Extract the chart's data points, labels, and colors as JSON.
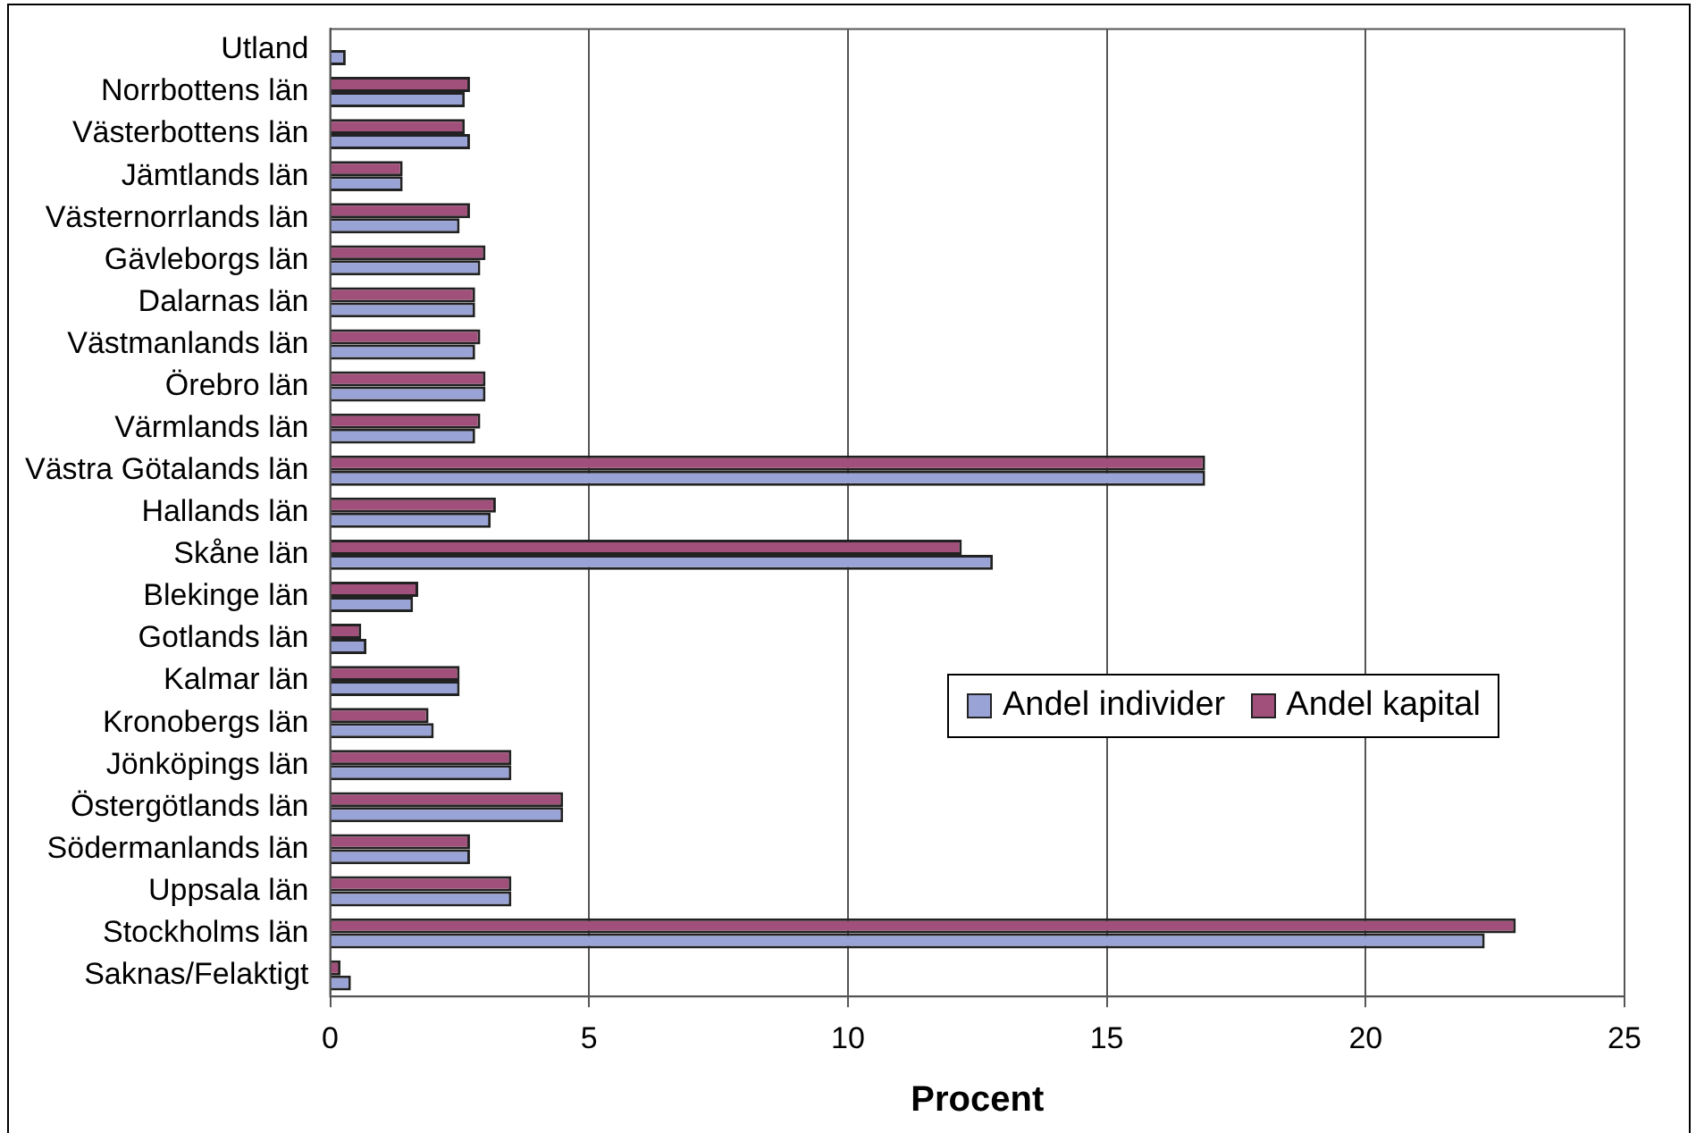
{
  "chart_data": {
    "type": "bar",
    "orientation": "horizontal",
    "xlabel": "Procent",
    "categories": [
      "Utland",
      "Norrbottens län",
      "Västerbottens län",
      "Jämtlands län",
      "Västernorrlands län",
      "Gävleborgs län",
      "Dalarnas län",
      "Västmanlands län",
      "Örebro län",
      "Värmlands län",
      "Västra Götalands län",
      "Hallands län",
      "Skåne län",
      "Blekinge län",
      "Gotlands län",
      "Kalmar län",
      "Kronobergs län",
      "Jönköpings län",
      "Östergötlands län",
      "Södermanlands län",
      "Uppsala län",
      "Stockholms län",
      "Saknas/Felaktigt"
    ],
    "series": [
      {
        "name": "Andel individer",
        "color": "#9aa3d6",
        "values": [
          0.3,
          2.6,
          2.7,
          1.4,
          2.5,
          2.9,
          2.8,
          2.8,
          3.0,
          2.8,
          16.9,
          3.1,
          12.8,
          1.6,
          0.7,
          2.5,
          2.0,
          3.5,
          4.5,
          2.7,
          3.5,
          22.3,
          0.4
        ]
      },
      {
        "name": "Andel kapital",
        "color": "#a0507a",
        "values": [
          0,
          2.7,
          2.6,
          1.4,
          2.7,
          3.0,
          2.8,
          2.9,
          3.0,
          2.9,
          16.9,
          3.2,
          12.2,
          1.7,
          0.6,
          2.5,
          1.9,
          3.5,
          4.5,
          2.7,
          3.5,
          22.9,
          0.2
        ]
      }
    ],
    "xlim": [
      0,
      25
    ],
    "xticks": [
      0,
      5,
      10,
      15,
      20,
      25
    ],
    "grid": "x",
    "legend": "right"
  }
}
